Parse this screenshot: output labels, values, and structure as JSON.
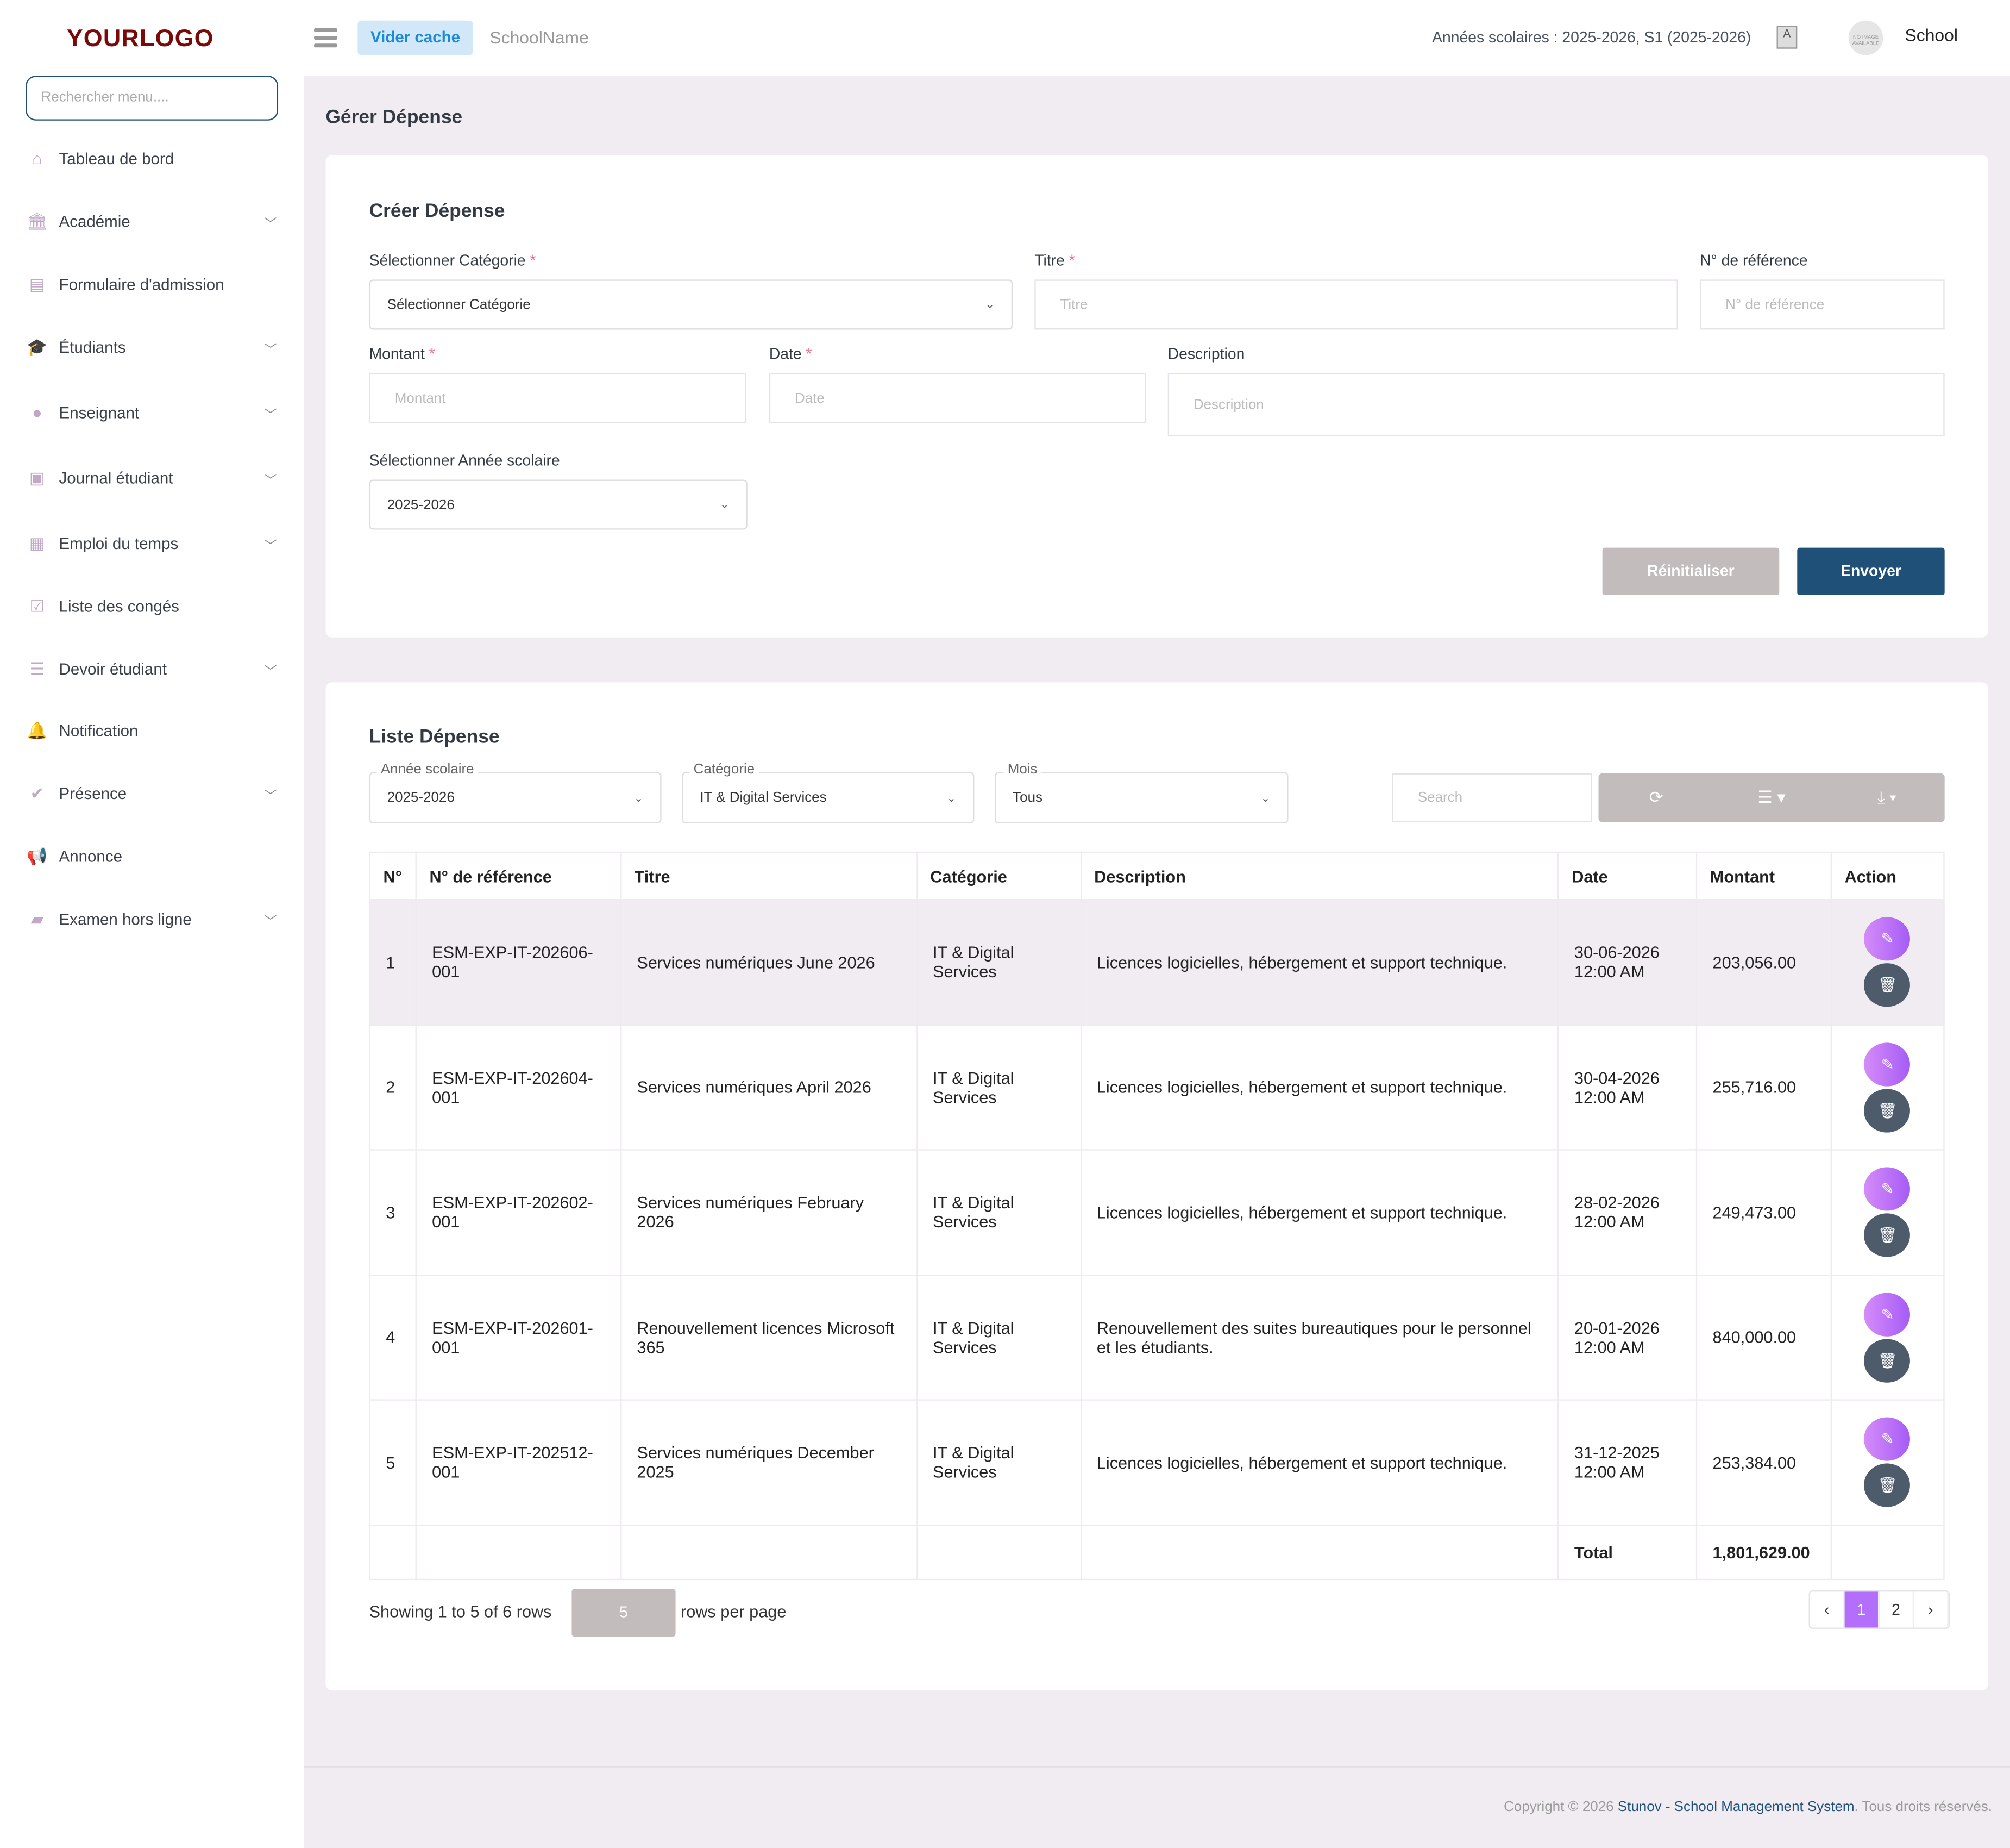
{
  "logo": "YOURLOGO",
  "sidebar": {
    "search_placeholder": "Rechercher menu....",
    "items": [
      {
        "label": "Tableau de bord",
        "icon": "home-icon",
        "chevron": false
      },
      {
        "label": "Académie",
        "icon": "bank-icon",
        "chevron": true
      },
      {
        "label": "Formulaire d'admission",
        "icon": "form-icon",
        "chevron": false
      },
      {
        "label": "Étudiants",
        "icon": "graduation-cap-icon",
        "chevron": true
      },
      {
        "label": "Enseignant",
        "icon": "user-icon",
        "chevron": true
      },
      {
        "label": "Journal étudiant",
        "icon": "journal-icon",
        "chevron": true
      },
      {
        "label": "Emploi du temps",
        "icon": "calendar-icon",
        "chevron": true
      },
      {
        "label": "Liste des congés",
        "icon": "calendar-check-icon",
        "chevron": false
      },
      {
        "label": "Devoir étudiant",
        "icon": "list-icon",
        "chevron": true
      },
      {
        "label": "Notification",
        "icon": "bell-icon",
        "chevron": false
      },
      {
        "label": "Présence",
        "icon": "check-icon",
        "chevron": true
      },
      {
        "label": "Annonce",
        "icon": "bullhorn-icon",
        "chevron": false
      },
      {
        "label": "Examen hors ligne",
        "icon": "book-icon",
        "chevron": true
      }
    ]
  },
  "topbar": {
    "clear_cache": "Vider cache",
    "school_name": "SchoolName",
    "years": "Années scolaires : 2025-2026, S1 (2025-2026)",
    "avatar_text": "NO IMAGE AVAILABLE",
    "user": "School"
  },
  "page_title": "Gérer Dépense",
  "form": {
    "title": "Créer Dépense",
    "category_label": "Sélectionner Catégorie",
    "category_value": "Sélectionner Catégorie",
    "titre_label": "Titre",
    "titre_placeholder": "Titre",
    "ref_label": "N° de référence",
    "ref_placeholder": "N° de référence",
    "montant_label": "Montant",
    "montant_placeholder": "Montant",
    "date_label": "Date",
    "date_placeholder": "Date",
    "desc_label": "Description",
    "desc_placeholder": "Description",
    "year_label": "Sélectionner Année scolaire",
    "year_value": "2025-2026",
    "required_mark": "*",
    "reset": "Réinitialiser",
    "submit": "Envoyer"
  },
  "list": {
    "title": "Liste Dépense",
    "filters": {
      "year_label": "Année scolaire",
      "year_value": "2025-2026",
      "cat_label": "Catégorie",
      "cat_value": "IT & Digital Services",
      "month_label": "Mois",
      "month_value": "Tous"
    },
    "search_placeholder": "Search",
    "columns": [
      "N°",
      "N° de référence",
      "Titre",
      "Catégorie",
      "Description",
      "Date",
      "Montant",
      "Action"
    ],
    "rows": [
      {
        "n": "1",
        "ref": "ESM-EXP-IT-202606-001",
        "titre": "Services numériques June 2026",
        "cat": "IT & Digital Services",
        "desc": "Licences logicielles, hébergement et support technique.",
        "date": "30-06-2026 12:00 AM",
        "montant": "203,056.00"
      },
      {
        "n": "2",
        "ref": "ESM-EXP-IT-202604-001",
        "titre": "Services numériques April 2026",
        "cat": "IT & Digital Services",
        "desc": "Licences logicielles, hébergement et support technique.",
        "date": "30-04-2026 12:00 AM",
        "montant": "255,716.00"
      },
      {
        "n": "3",
        "ref": "ESM-EXP-IT-202602-001",
        "titre": "Services numériques February 2026",
        "cat": "IT & Digital Services",
        "desc": "Licences logicielles, hébergement et support technique.",
        "date": "28-02-2026 12:00 AM",
        "montant": "249,473.00"
      },
      {
        "n": "4",
        "ref": "ESM-EXP-IT-202601-001",
        "titre": "Renouvellement licences Microsoft 365",
        "cat": "IT & Digital Services",
        "desc": "Renouvellement des suites bureautiques pour le personnel et les étudiants.",
        "date": "20-01-2026 12:00 AM",
        "montant": "840,000.00"
      },
      {
        "n": "5",
        "ref": "ESM-EXP-IT-202512-001",
        "titre": "Services numériques December 2025",
        "cat": "IT & Digital Services",
        "desc": "Licences logicielles, hébergement et support technique.",
        "date": "31-12-2025 12:00 AM",
        "montant": "253,384.00"
      }
    ],
    "total_label": "Total",
    "total_value": "1,801,629.00",
    "showing": "Showing 1 to 5 of 6 rows",
    "page_size": "5",
    "rows_per_page": "rows per page",
    "pages": [
      "‹",
      "1",
      "2",
      "›"
    ],
    "current_page": "1"
  },
  "footer": {
    "prefix": "Copyright © 2026 ",
    "link": "Stunov - School Management System",
    "suffix": ". Tous droits réservés."
  },
  "colors": {
    "primary": "#1f5078",
    "accent": "#b36ffc",
    "reset": "#c2bcbc",
    "bg": "#f0ecf2"
  }
}
